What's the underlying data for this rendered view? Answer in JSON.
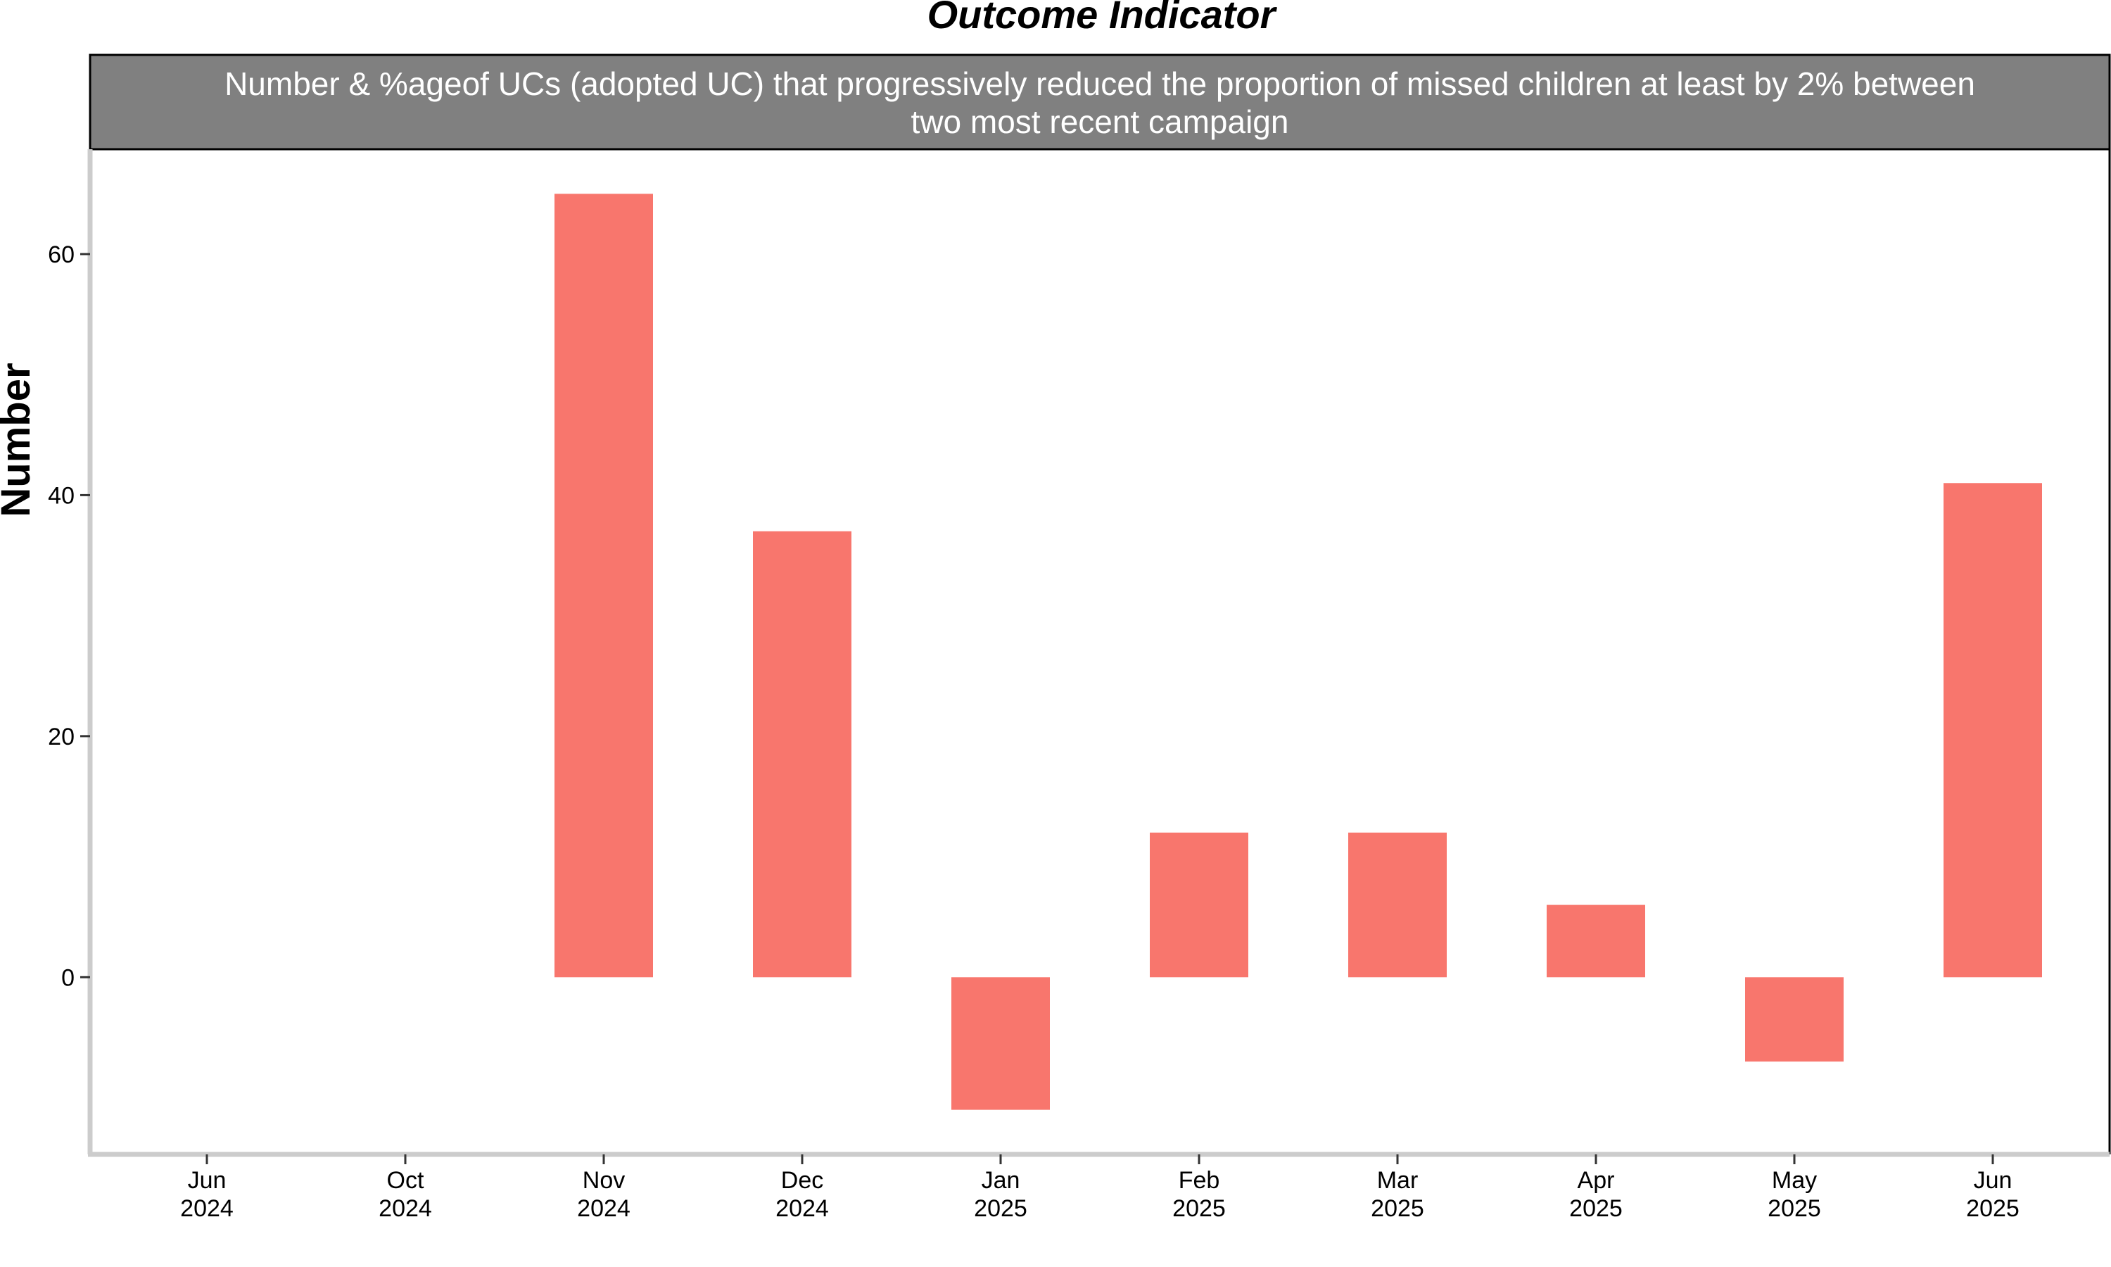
{
  "chart_data": {
    "type": "bar",
    "title": "Outcome Indicator",
    "strip_title": [
      "Number & %ageof UCs (adopted UC) that progressively reduced the proportion of missed children at least by 2% between",
      "two most recent campaign"
    ],
    "ylabel": "Number",
    "xlabel": "",
    "categories": [
      [
        "Jun",
        "2024"
      ],
      [
        "Oct",
        "2024"
      ],
      [
        "Nov",
        "2024"
      ],
      [
        "Dec",
        "2024"
      ],
      [
        "Jan",
        "2025"
      ],
      [
        "Feb",
        "2025"
      ],
      [
        "Mar",
        "2025"
      ],
      [
        "Apr",
        "2025"
      ],
      [
        "May",
        "2025"
      ],
      [
        "Jun",
        "2025"
      ]
    ],
    "values": [
      null,
      null,
      65,
      37,
      -11,
      12,
      12,
      6,
      -7,
      41
    ],
    "ylim": [
      -14.7,
      68.7
    ],
    "yticks": [
      0,
      20,
      40,
      60
    ],
    "grid": false,
    "legend": "none",
    "colors": {
      "bar": "#F8766D",
      "strip_fill": "#808080",
      "axis": "#cccccc",
      "panel_border": "#000000"
    }
  }
}
